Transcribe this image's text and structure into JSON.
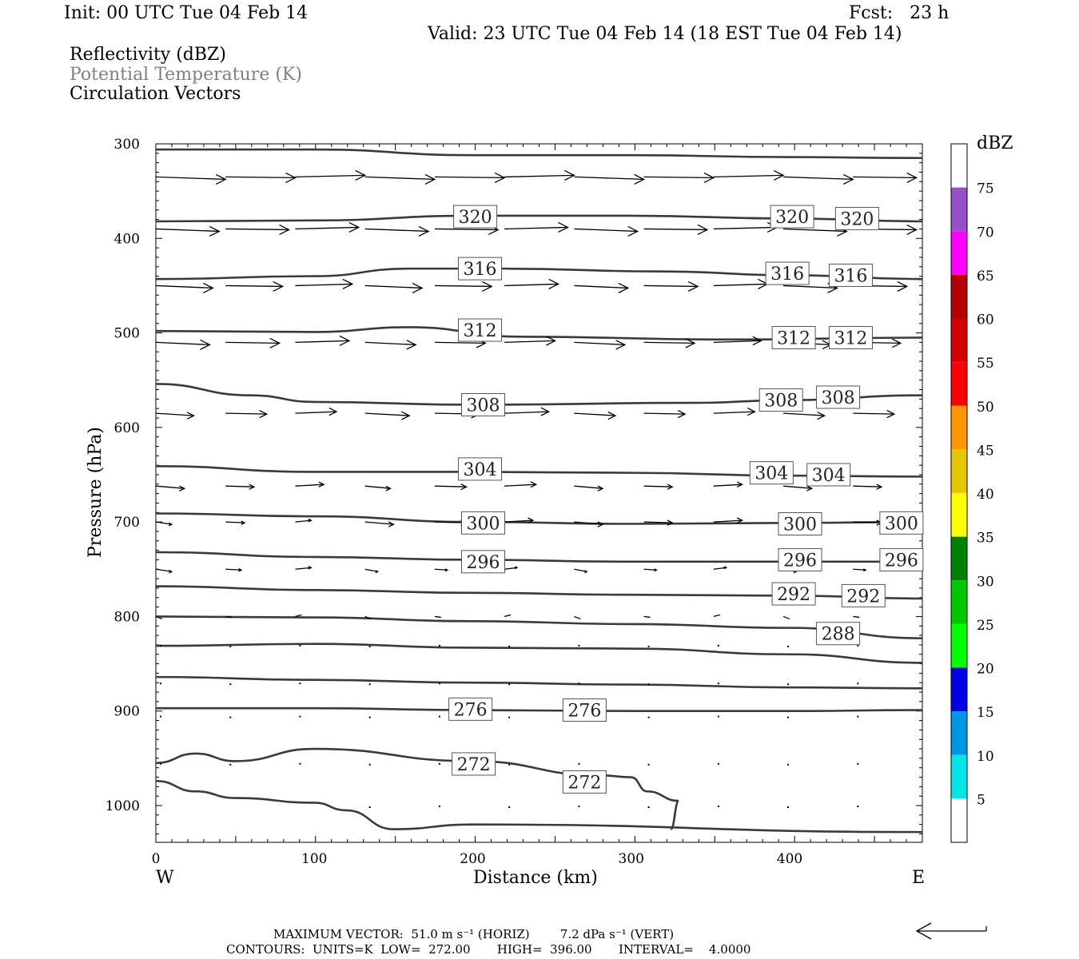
{
  "header": {
    "init": "Init: 00 UTC Tue 04 Feb 14",
    "fcst": "Fcst:   23 h",
    "valid": "Valid: 23 UTC Tue 04 Feb 14 (18 EST Tue 04 Feb 14)",
    "field1": "Reflectivity (dBZ)",
    "field2": "Potential Temperature (K)",
    "field3": "Circulation Vectors"
  },
  "footer": {
    "line1": "MAXIMUM VECTOR:  51.0 m s⁻¹ (HORIZ)        7.2 dPa s⁻¹ (VERT)",
    "line2": "CONTOURS:  UNITS=K  LOW=  272.00       HIGH=  396.00       INTERVAL=    4.0000"
  },
  "colors": {
    "contour": "#3a3a3a",
    "field2_text": "#808080",
    "scale": [
      "#ffffff",
      "#00e6e6",
      "#0096e6",
      "#0000e6",
      "#00ff00",
      "#00c800",
      "#008200",
      "#ffff00",
      "#e6c800",
      "#ff9600",
      "#ff0000",
      "#d20000",
      "#b40000",
      "#ff00ff",
      "#9650c8",
      "#ffffff"
    ]
  },
  "chart_data": {
    "type": "contour",
    "xlabel": "Distance (km)",
    "ylabel": "Pressure (hPa)",
    "x_ticks": [
      "0",
      "100",
      "200",
      "300",
      "400"
    ],
    "y_ticks": [
      "300",
      "400",
      "500",
      "600",
      "700",
      "800",
      "900",
      "1000"
    ],
    "xlim": [
      0,
      485
    ],
    "ylim": [
      1030,
      300
    ],
    "left_end": "W",
    "right_end": "E",
    "colorbar": {
      "title": "dBZ",
      "ticks": [
        "5",
        "10",
        "15",
        "20",
        "25",
        "30",
        "35",
        "40",
        "45",
        "50",
        "55",
        "60",
        "65",
        "70",
        "75"
      ]
    },
    "isentropes": [
      {
        "theta": null,
        "points": [
          [
            0,
            306
          ],
          [
            100,
            306
          ],
          [
            200,
            312
          ],
          [
            300,
            312
          ],
          [
            400,
            314
          ],
          [
            485,
            315
          ]
        ]
      },
      {
        "theta": 320,
        "points": [
          [
            0,
            382
          ],
          [
            100,
            381
          ],
          [
            200,
            376
          ],
          [
            300,
            376
          ],
          [
            400,
            379
          ],
          [
            485,
            382
          ]
        ],
        "labels": [
          [
            195,
            377
          ],
          [
            395,
            377
          ],
          [
            436,
            379
          ]
        ]
      },
      {
        "theta": 316,
        "points": [
          [
            0,
            443
          ],
          [
            100,
            440
          ],
          [
            160,
            432
          ],
          [
            220,
            432
          ],
          [
            320,
            435
          ],
          [
            400,
            439
          ],
          [
            485,
            443
          ]
        ],
        "labels": [
          [
            198,
            432
          ],
          [
            392,
            437
          ],
          [
            432,
            439
          ]
        ]
      },
      {
        "theta": 312,
        "points": [
          [
            0,
            498
          ],
          [
            100,
            499
          ],
          [
            160,
            494
          ],
          [
            230,
            504
          ],
          [
            360,
            507
          ],
          [
            485,
            505
          ]
        ],
        "labels": [
          [
            198,
            497
          ],
          [
            396,
            505
          ],
          [
            432,
            505
          ]
        ]
      },
      {
        "theta": 308,
        "points": [
          [
            0,
            554
          ],
          [
            60,
            566
          ],
          [
            100,
            573
          ],
          [
            200,
            576
          ],
          [
            340,
            574
          ],
          [
            400,
            571
          ],
          [
            485,
            566
          ]
        ],
        "labels": [
          [
            200,
            576
          ],
          [
            388,
            571
          ],
          [
            424,
            568
          ]
        ]
      },
      {
        "theta": 304,
        "points": [
          [
            0,
            641
          ],
          [
            100,
            647
          ],
          [
            200,
            647
          ],
          [
            300,
            648
          ],
          [
            400,
            651
          ],
          [
            485,
            652
          ]
        ],
        "labels": [
          [
            198,
            644
          ],
          [
            382,
            648
          ],
          [
            418,
            650
          ]
        ]
      },
      {
        "theta": 300,
        "points": [
          [
            0,
            691
          ],
          [
            100,
            694
          ],
          [
            200,
            700
          ],
          [
            300,
            702
          ],
          [
            400,
            701
          ],
          [
            485,
            700
          ]
        ],
        "labels": [
          [
            200,
            701
          ],
          [
            400,
            702
          ],
          [
            464,
            701
          ]
        ]
      },
      {
        "theta": 296,
        "points": [
          [
            0,
            732
          ],
          [
            100,
            737
          ],
          [
            200,
            740
          ],
          [
            300,
            742
          ],
          [
            400,
            742
          ],
          [
            485,
            742
          ]
        ],
        "labels": [
          [
            200,
            742
          ],
          [
            400,
            740
          ],
          [
            464,
            740
          ]
        ]
      },
      {
        "theta": 292,
        "points": [
          [
            0,
            768
          ],
          [
            100,
            772
          ],
          [
            200,
            775
          ],
          [
            300,
            777
          ],
          [
            400,
            778
          ],
          [
            485,
            781
          ]
        ],
        "labels": [
          [
            396,
            776
          ],
          [
            440,
            778
          ]
        ]
      },
      {
        "theta": 288,
        "points": [
          [
            0,
            800
          ],
          [
            100,
            801
          ],
          [
            200,
            805
          ],
          [
            300,
            808
          ],
          [
            400,
            812
          ],
          [
            485,
            823
          ]
        ],
        "labels": [
          [
            424,
            818
          ]
        ]
      },
      {
        "theta": null,
        "points": [
          [
            0,
            831
          ],
          [
            100,
            829
          ],
          [
            200,
            833
          ],
          [
            300,
            834
          ],
          [
            400,
            840
          ],
          [
            485,
            849
          ]
        ]
      },
      {
        "theta": null,
        "points": [
          [
            0,
            864
          ],
          [
            100,
            867
          ],
          [
            200,
            870
          ],
          [
            300,
            872
          ],
          [
            400,
            875
          ],
          [
            485,
            876
          ]
        ]
      },
      {
        "theta": 276,
        "points": [
          [
            0,
            897
          ],
          [
            100,
            897
          ],
          [
            200,
            899
          ],
          [
            300,
            900
          ],
          [
            400,
            900
          ],
          [
            485,
            899
          ]
        ],
        "labels": [
          [
            192,
            898
          ],
          [
            264,
            899
          ]
        ]
      },
      {
        "theta": 272,
        "points": [
          [
            0,
            955
          ],
          [
            25,
            945
          ],
          [
            50,
            953
          ],
          [
            100,
            940
          ],
          [
            200,
            953
          ],
          [
            280,
            968
          ],
          [
            300,
            970
          ],
          [
            310,
            985
          ],
          [
            330,
            995
          ],
          [
            325,
            1025
          ]
        ],
        "labels": [
          [
            194,
            956
          ],
          [
            264,
            975
          ]
        ]
      },
      {
        "theta": null,
        "points": [
          [
            0,
            974
          ],
          [
            25,
            985
          ],
          [
            50,
            992
          ],
          [
            100,
            997
          ],
          [
            120,
            1005
          ],
          [
            150,
            1025
          ],
          [
            200,
            1020
          ],
          [
            485,
            1028
          ]
        ]
      }
    ],
    "vectors": {
      "note": "circulation vector rows (pressure level in hPa, horizontal arrow length in km-equivalent)",
      "rows": [
        {
          "p": 335,
          "lengths": [
            44,
            44,
            44,
            44,
            44,
            44,
            44,
            44,
            44,
            44,
            40
          ]
        },
        {
          "p": 390,
          "lengths": [
            40,
            40,
            40,
            40,
            40,
            40,
            40,
            40,
            40,
            40,
            40
          ]
        },
        {
          "p": 450,
          "lengths": [
            36,
            36,
            36,
            36,
            36,
            34,
            34,
            34,
            34,
            34,
            34
          ]
        },
        {
          "p": 510,
          "lengths": [
            34,
            34,
            34,
            32,
            32,
            32,
            32,
            32,
            30,
            30,
            30
          ]
        },
        {
          "p": 585,
          "lengths": [
            24,
            26,
            26,
            28,
            28,
            28,
            26,
            26,
            26,
            26,
            26
          ]
        },
        {
          "p": 662,
          "lengths": [
            18,
            18,
            18,
            16,
            20,
            20,
            18,
            18,
            18,
            18,
            18
          ]
        },
        {
          "p": 700,
          "lengths": [
            10,
            12,
            10,
            18,
            20,
            18,
            18,
            18,
            18,
            18,
            18
          ]
        },
        {
          "p": 750,
          "lengths": [
            10,
            10,
            10,
            8,
            8,
            8,
            8,
            8,
            8,
            8,
            8
          ]
        },
        {
          "p": 800,
          "lengths": [
            4,
            4,
            4,
            4,
            4,
            4,
            4,
            4,
            4,
            4,
            4
          ]
        }
      ]
    }
  }
}
